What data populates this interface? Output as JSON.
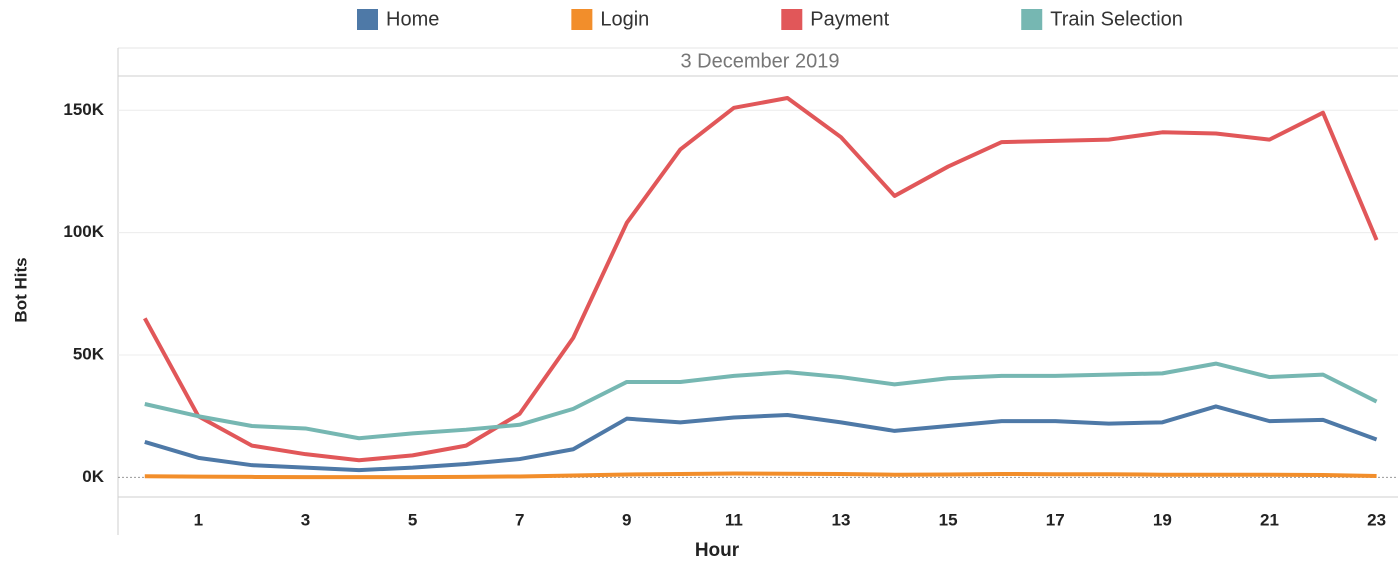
{
  "chart_data": {
    "type": "line",
    "subtitle": "3 December 2019",
    "x_label": "Hour",
    "y_label": "Bot Hits",
    "x": [
      0,
      1,
      2,
      3,
      4,
      5,
      6,
      7,
      8,
      9,
      10,
      11,
      12,
      13,
      14,
      15,
      16,
      17,
      18,
      19,
      20,
      21,
      22,
      23
    ],
    "xlim": [
      -0.5,
      23.4
    ],
    "xticks": [
      1,
      3,
      5,
      7,
      9,
      11,
      13,
      15,
      17,
      19,
      21,
      23
    ],
    "ylim": [
      -8000,
      164000
    ],
    "yticks": [
      {
        "value": 0,
        "label": "0K"
      },
      {
        "value": 50000,
        "label": "50K"
      },
      {
        "value": 100000,
        "label": "100K"
      },
      {
        "value": 150000,
        "label": "150K"
      }
    ],
    "grid": true,
    "legend": "top",
    "series": [
      {
        "name": "Home",
        "color": "#4e79a7",
        "values": [
          14500,
          8000,
          5000,
          4000,
          3000,
          4000,
          5500,
          7500,
          11500,
          24000,
          22500,
          24500,
          25500,
          22500,
          19000,
          21000,
          23000,
          23000,
          22000,
          22500,
          29000,
          23000,
          23500,
          15500
        ]
      },
      {
        "name": "Login",
        "color": "#f28e2b",
        "values": [
          500,
          300,
          200,
          100,
          100,
          100,
          200,
          400,
          800,
          1200,
          1400,
          1600,
          1500,
          1400,
          1100,
          1200,
          1400,
          1300,
          1300,
          1100,
          1100,
          1100,
          1000,
          600
        ]
      },
      {
        "name": "Payment",
        "color": "#e15759",
        "values": [
          65000,
          25000,
          13000,
          9500,
          7000,
          9000,
          13000,
          26000,
          57000,
          104000,
          134000,
          151000,
          155000,
          139000,
          115000,
          127000,
          137000,
          137500,
          138000,
          141000,
          140500,
          138000,
          149000,
          97000
        ]
      },
      {
        "name": "Train Selection",
        "color": "#76b7b2",
        "values": [
          30000,
          25000,
          21000,
          20000,
          16000,
          18000,
          19500,
          21500,
          28000,
          39000,
          39000,
          41500,
          43000,
          41000,
          38000,
          40500,
          41500,
          41500,
          42000,
          42500,
          46500,
          41000,
          42000,
          31000
        ]
      }
    ]
  }
}
